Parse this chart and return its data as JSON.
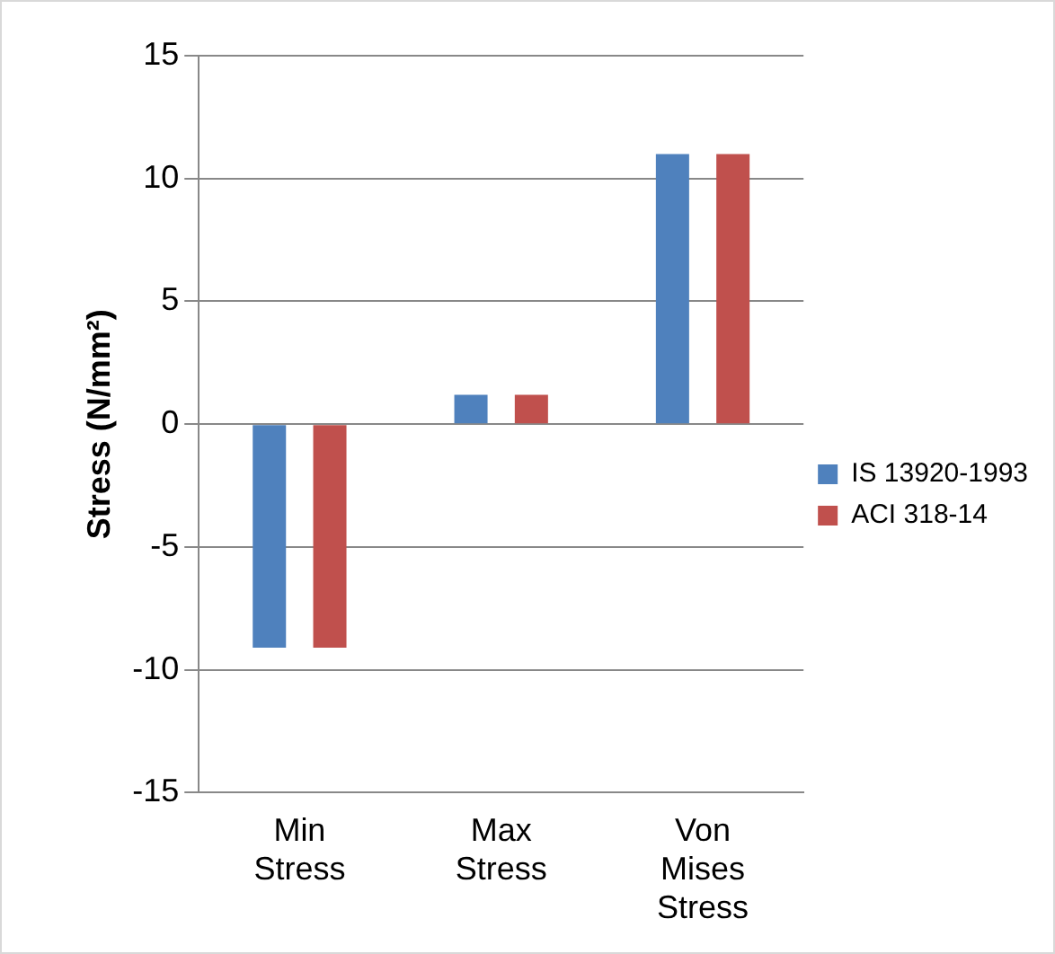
{
  "chart_data": {
    "type": "bar",
    "ylabel": "Stress (N/mm²)",
    "categories": [
      "Min Stress",
      "Max Stress",
      "Von Mises Stress"
    ],
    "series": [
      {
        "name": "IS 13920-1993",
        "color": "#4f81bd",
        "values": [
          -9.1,
          1.2,
          11
        ]
      },
      {
        "name": "ACI 318-14",
        "color": "#c0504d",
        "values": [
          -9.1,
          1.2,
          11
        ]
      }
    ],
    "ylim": [
      -15,
      15
    ],
    "yticks": [
      -15,
      -10,
      -5,
      0,
      5,
      10,
      15
    ],
    "grid": "y",
    "legend": "right"
  }
}
